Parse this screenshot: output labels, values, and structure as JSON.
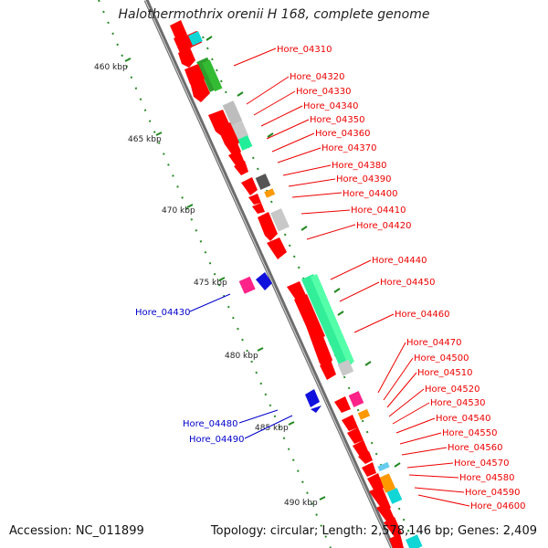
{
  "title": "Halothermothrix orenii H 168, complete genome",
  "footer": {
    "accession": "Accession: NC_011899",
    "summary": "Topology: circular; Length: 2,578,146 bp; Genes: 2,409"
  },
  "colors": {
    "red": "#ff0000",
    "blue": "#0000cc",
    "green": "#008000",
    "spring": "#33ee99",
    "gray": "#bbbbbb",
    "darkgray": "#555555",
    "cyan": "#00cccc",
    "orange": "#ff9900",
    "magenta": "#ff2288",
    "darkgreen": "#22aa22",
    "backbone": "#888888"
  },
  "kbp_marks": [
    "460 kbp",
    "465 kbp",
    "470 kbp",
    "475 kbp",
    "480 kbp",
    "485 kbp",
    "490 kbp"
  ],
  "labels_right": [
    "Hore_04310",
    "Hore_04320",
    "Hore_04330",
    "Hore_04340",
    "Hore_04350",
    "Hore_04360",
    "Hore_04370",
    "Hore_04380",
    "Hore_04390",
    "Hore_04400",
    "Hore_04410",
    "Hore_04420",
    "Hore_04440",
    "Hore_04450",
    "Hore_04460",
    "Hore_04470",
    "Hore_04500",
    "Hore_04510",
    "Hore_04520",
    "Hore_04530",
    "Hore_04540",
    "Hore_04550",
    "Hore_04560",
    "Hore_04570",
    "Hore_04580",
    "Hore_04590",
    "Hore_04600"
  ],
  "labels_left": [
    "Hore_04430",
    "Hore_04480",
    "Hore_04490"
  ]
}
